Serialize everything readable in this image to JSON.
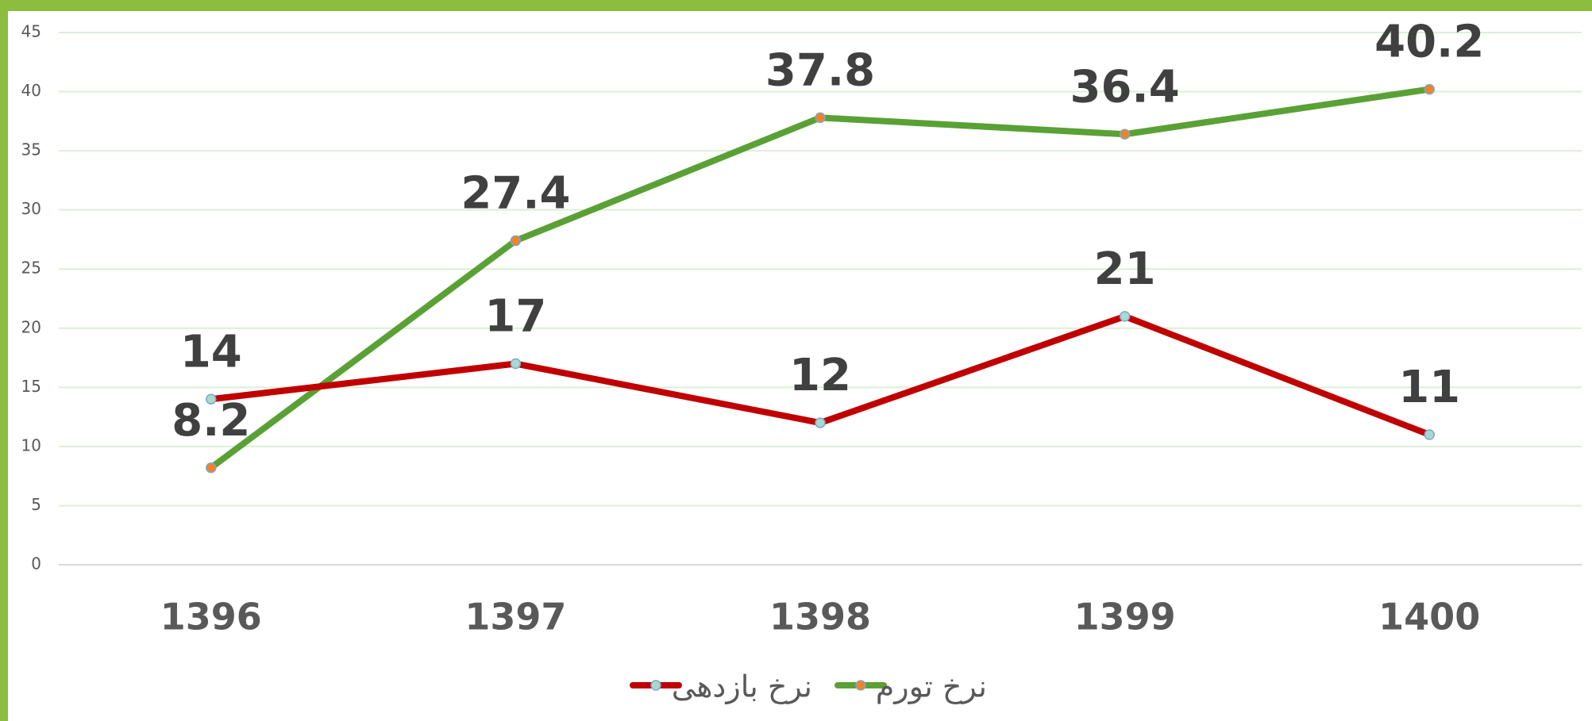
{
  "chart_data": {
    "type": "line",
    "categories": [
      "1396",
      "1397",
      "1398",
      "1399",
      "1400"
    ],
    "series": [
      {
        "name": "نرخ تورم",
        "color": "#5aa135",
        "marker_color": "#f0822c",
        "values": [
          8.2,
          27.4,
          37.8,
          36.4,
          40.2
        ]
      },
      {
        "name": "نرخ بازدهی",
        "color": "#c00000",
        "marker_color": "#a8d8d0",
        "values": [
          14,
          17,
          12,
          21,
          11
        ]
      }
    ],
    "ylim": [
      0,
      45
    ],
    "yticks": [
      0,
      5,
      10,
      15,
      20,
      25,
      30,
      35,
      40,
      45
    ],
    "grid": true,
    "legend": "bottom"
  }
}
